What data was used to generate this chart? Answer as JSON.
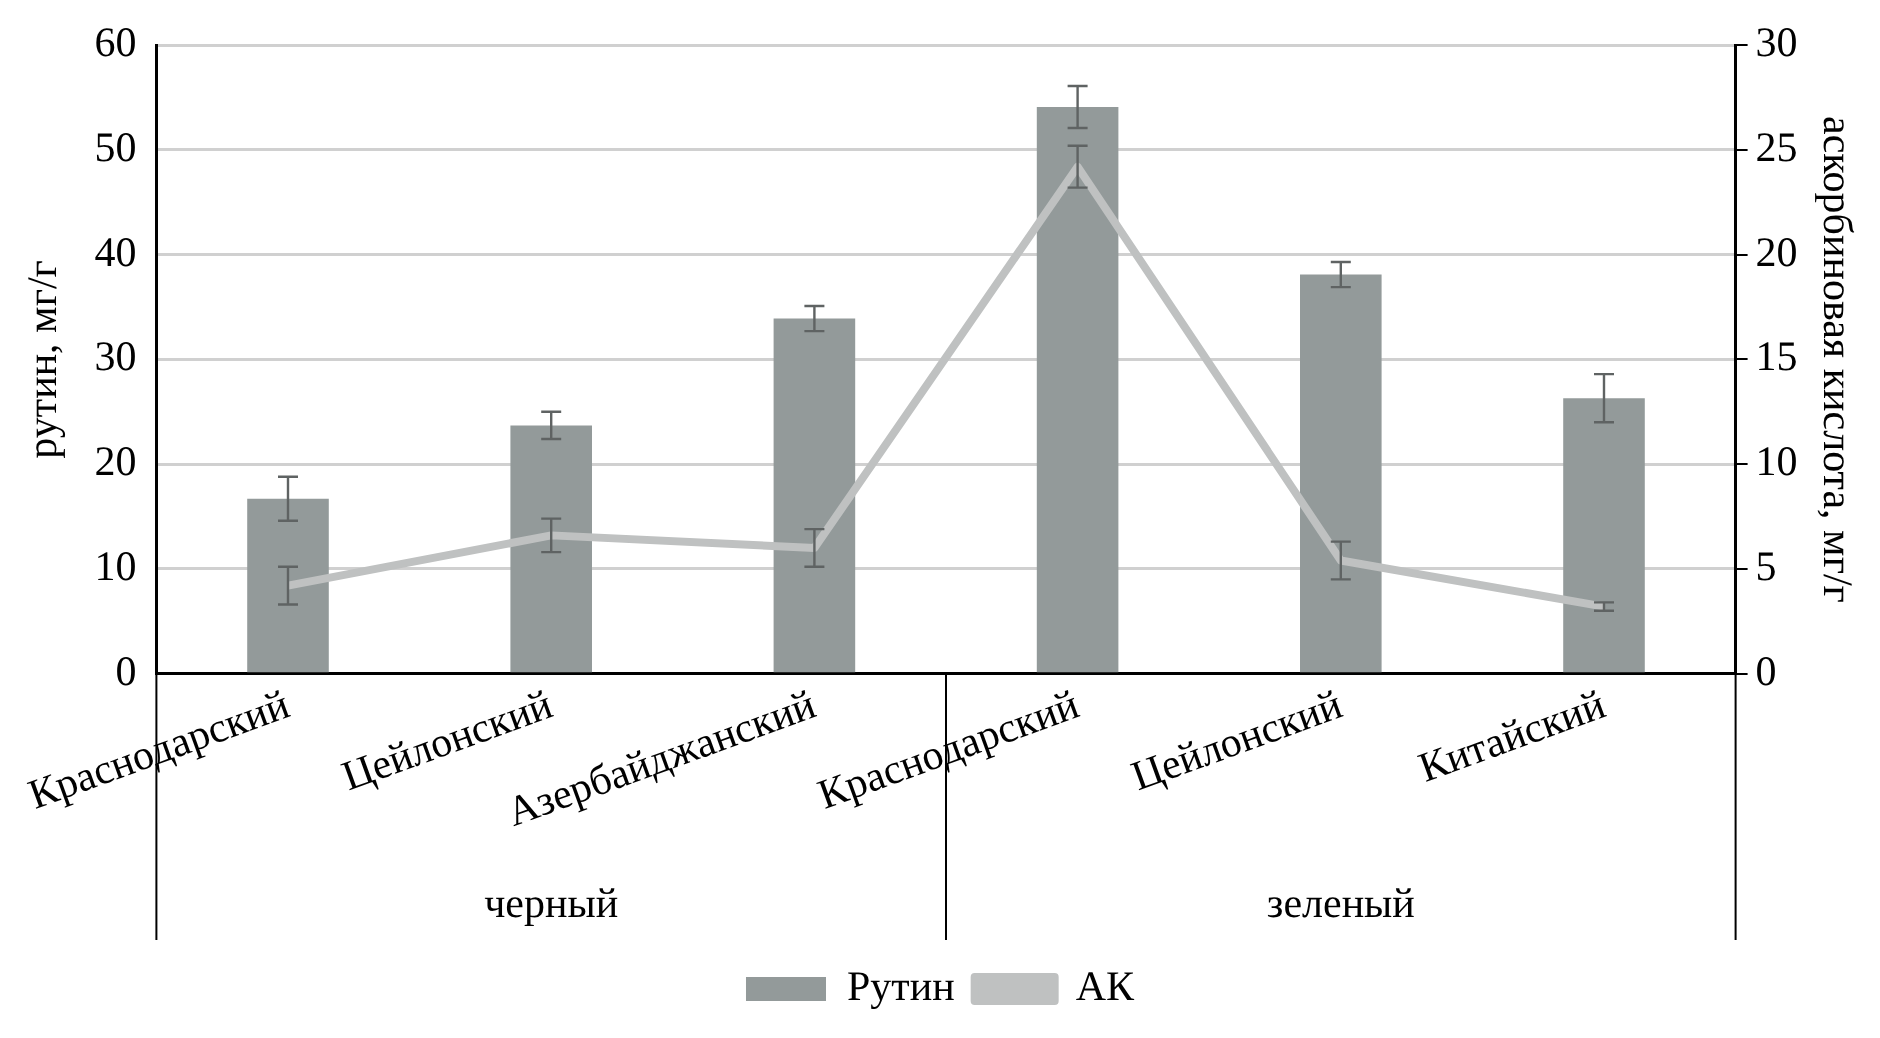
{
  "chart_data": {
    "type": "bar",
    "xlabel": null,
    "ylabel": "рутин, мг/г",
    "y2label": "аскорбиновая кислота, мг/г",
    "categories": [
      "Краснодарский",
      "Цейлонский",
      "Азербайджанский",
      "Краснодарский",
      "Цейлонский",
      "Китайский"
    ],
    "series": [
      {
        "name": "Рутин",
        "color": "#939a9a",
        "values": [
          16.7,
          23.7,
          33.9,
          54.1,
          38.1,
          26.3
        ],
        "errors": [
          2.1,
          1.3,
          1.2,
          2,
          1.2,
          2.3
        ]
      },
      {
        "name": "АК",
        "type": "line",
        "axis": "y2",
        "color": "#bfc1c1",
        "marker": "none",
        "line_style": "solid",
        "values": [
          4.2,
          6.6,
          6.0,
          24.2,
          5.4,
          3.2
        ],
        "errors": [
          0.9,
          0.8,
          0.9,
          1.0,
          0.9,
          0.2
        ]
      }
    ],
    "annotations": [
      "черный",
      "зеленый"
    ],
    "ylim": [
      0,
      60
    ],
    "yticks": [
      0,
      10,
      20,
      30,
      40,
      50,
      60
    ],
    "y2lim": [
      0,
      30
    ],
    "y2ticks": [
      0,
      5,
      10,
      15,
      20,
      25,
      30
    ],
    "grid": "y",
    "legend": "bottom"
  }
}
